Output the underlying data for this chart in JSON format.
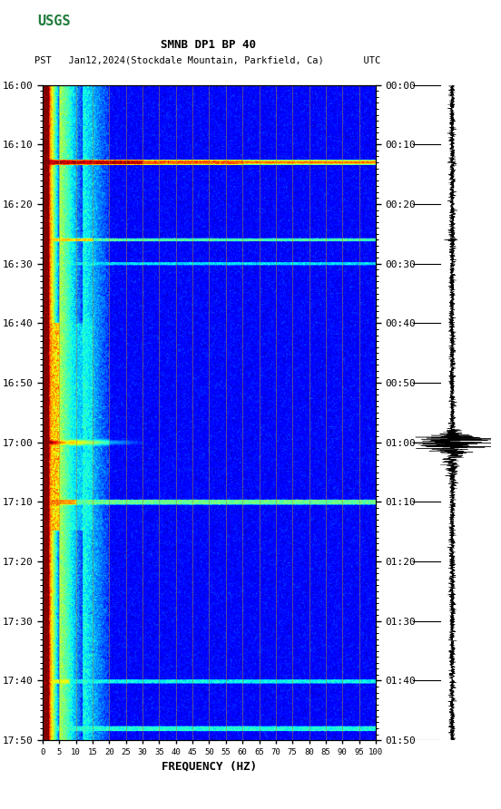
{
  "title_line1": "SMNB DP1 BP 40",
  "title_line2": "PST   Jan12,2024(Stockdale Mountain, Parkfield, Ca)       UTC",
  "xlabel": "FREQUENCY (HZ)",
  "freq_min": 0,
  "freq_max": 100,
  "freq_ticks": [
    0,
    5,
    10,
    15,
    20,
    25,
    30,
    35,
    40,
    45,
    50,
    55,
    60,
    65,
    70,
    75,
    80,
    85,
    90,
    95,
    100
  ],
  "time_ticks_pst": [
    "16:00",
    "16:10",
    "16:20",
    "16:30",
    "16:40",
    "16:50",
    "17:00",
    "17:10",
    "17:20",
    "17:30",
    "17:40",
    "17:50"
  ],
  "time_ticks_utc": [
    "00:00",
    "00:10",
    "00:20",
    "00:30",
    "00:40",
    "00:50",
    "01:00",
    "01:10",
    "01:20",
    "01:30",
    "01:40",
    "01:50"
  ],
  "background_color": "#ffffff",
  "colormap": "jet",
  "n_time": 660,
  "n_freq": 500,
  "grid_color": "#aa8833",
  "grid_alpha": 0.6,
  "grid_lw": 0.6
}
